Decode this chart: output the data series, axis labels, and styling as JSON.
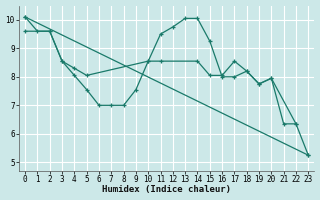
{
  "background_color": "#cce8e8",
  "grid_color": "#ffffff",
  "line_color": "#1a7a6a",
  "xlabel": "Humidex (Indice chaleur)",
  "xlim": [
    -0.5,
    23.5
  ],
  "ylim": [
    4.7,
    10.5
  ],
  "xticks": [
    0,
    1,
    2,
    3,
    4,
    5,
    6,
    7,
    8,
    9,
    10,
    11,
    12,
    13,
    14,
    15,
    16,
    17,
    18,
    19,
    20,
    21,
    22,
    23
  ],
  "yticks": [
    5,
    6,
    7,
    8,
    9,
    10
  ],
  "series": [
    {
      "x": [
        0,
        1,
        2,
        3,
        4,
        5,
        6,
        7,
        8,
        9,
        10,
        11,
        12,
        13,
        14,
        15,
        16,
        17,
        18,
        19,
        20,
        21,
        22
      ],
      "y": [
        10.1,
        9.6,
        9.6,
        8.55,
        8.05,
        7.55,
        7.0,
        7.0,
        7.0,
        7.55,
        8.55,
        9.5,
        9.75,
        10.05,
        10.05,
        9.25,
        8.0,
        8.0,
        8.2,
        7.75,
        7.95,
        6.35,
        6.35
      ]
    },
    {
      "x": [
        0,
        23
      ],
      "y": [
        10.1,
        5.25
      ]
    },
    {
      "x": [
        0,
        2,
        3,
        4,
        5,
        10,
        11,
        14,
        15,
        16,
        17,
        18,
        19,
        20,
        22,
        23
      ],
      "y": [
        9.6,
        9.6,
        8.55,
        8.3,
        8.05,
        8.55,
        8.55,
        8.55,
        8.05,
        8.05,
        8.55,
        8.2,
        7.75,
        7.95,
        6.35,
        5.25
      ]
    }
  ]
}
